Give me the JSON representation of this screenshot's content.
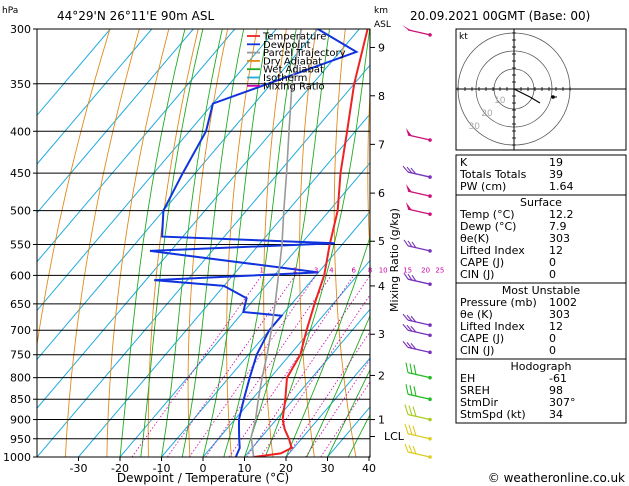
{
  "header": {
    "location": "44°29'N 26°11'E 90m ASL",
    "datetime": "20.09.2021 00GMT (Base: 00)"
  },
  "axes": {
    "left_unit": "hPa",
    "km_unit": "km",
    "asl_label": "ASL",
    "xlabel": "Dewpoint / Temperature (°C)",
    "mixing_label": "Mixing Ratio (g/kg)",
    "lcl_label": "LCL"
  },
  "legend": [
    {
      "name": "Temperature",
      "color": "#ee2222"
    },
    {
      "name": "Dewpoint",
      "color": "#1133dd"
    },
    {
      "name": "Parcel Trajectory",
      "color": "#999999"
    },
    {
      "name": "Dry Adiabat",
      "color": "#e08a1c"
    },
    {
      "name": "Wet Adiabat",
      "color": "#22aa22"
    },
    {
      "name": "Isotherm",
      "color": "#22aadd"
    },
    {
      "name": "Mixing Ratio",
      "color": "#cc00aa"
    }
  ],
  "chart_data": {
    "type": "line",
    "title": "",
    "pressure_levels": [
      300,
      350,
      400,
      450,
      500,
      550,
      600,
      650,
      700,
      750,
      800,
      850,
      900,
      950,
      1000
    ],
    "temperature_ticks": [
      -30,
      -20,
      -10,
      0,
      10,
      20,
      30,
      40
    ],
    "xlim": [
      -40,
      40
    ],
    "ylim_hpa": [
      1000,
      300
    ],
    "km_ticks": [
      {
        "km": 1,
        "p": 900
      },
      {
        "km": 2,
        "p": 795
      },
      {
        "km": 3,
        "p": 708
      },
      {
        "km": 4,
        "p": 618
      },
      {
        "km": 5,
        "p": 545
      },
      {
        "km": 6,
        "p": 476
      },
      {
        "km": 7,
        "p": 415
      },
      {
        "km": 8,
        "p": 362
      },
      {
        "km": 9,
        "p": 316
      }
    ],
    "mixing_ratio_labels": [
      "1",
      "2",
      "3",
      "4",
      "6",
      "8",
      "10",
      "15",
      "20",
      "25"
    ],
    "mixing_ratio_values": [
      1,
      2,
      3,
      4,
      6,
      8,
      10,
      15,
      20,
      25
    ],
    "series": [
      {
        "name": "Temperature",
        "color": "#ee2222",
        "points": [
          [
            1000,
            12.2
          ],
          [
            990,
            18
          ],
          [
            975,
            19.5
          ],
          [
            950,
            17
          ],
          [
            925,
            14
          ],
          [
            900,
            11.5
          ],
          [
            850,
            8
          ],
          [
            800,
            4
          ],
          [
            750,
            2.5
          ],
          [
            700,
            -1
          ],
          [
            650,
            -4.5
          ],
          [
            600,
            -8
          ],
          [
            550,
            -13
          ],
          [
            500,
            -18
          ],
          [
            450,
            -25
          ],
          [
            400,
            -32
          ],
          [
            350,
            -40
          ],
          [
            300,
            -48
          ]
        ]
      },
      {
        "name": "Dewpoint",
        "color": "#1133dd",
        "points": [
          [
            1000,
            7.9
          ],
          [
            975,
            7
          ],
          [
            950,
            5
          ],
          [
            925,
            3
          ],
          [
            900,
            1
          ],
          [
            850,
            -2
          ],
          [
            800,
            -5
          ],
          [
            750,
            -8
          ],
          [
            700,
            -10
          ],
          [
            672,
            -10
          ],
          [
            665,
            -20
          ],
          [
            640,
            -22
          ],
          [
            618,
            -30
          ],
          [
            608,
            -48
          ],
          [
            595,
            -10
          ],
          [
            560,
            -55
          ],
          [
            548,
            -12
          ],
          [
            538,
            -55
          ],
          [
            500,
            -60
          ],
          [
            450,
            -63
          ],
          [
            400,
            -66
          ],
          [
            370,
            -70
          ],
          [
            320,
            -46
          ],
          [
            300,
            -60
          ]
        ]
      },
      {
        "name": "Parcel Trajectory",
        "color": "#999999",
        "points": [
          [
            1000,
            12.2
          ],
          [
            945,
            7.5
          ],
          [
            900,
            5
          ],
          [
            850,
            1.5
          ],
          [
            800,
            -2
          ],
          [
            750,
            -5.5
          ],
          [
            700,
            -9.5
          ],
          [
            650,
            -14
          ],
          [
            600,
            -19
          ],
          [
            550,
            -24.5
          ],
          [
            500,
            -31
          ],
          [
            450,
            -38
          ],
          [
            400,
            -46
          ],
          [
            350,
            -55
          ],
          [
            300,
            -64
          ]
        ]
      }
    ]
  },
  "indices": [
    {
      "label": "K",
      "value": "19"
    },
    {
      "label": "Totals Totals",
      "value": "39"
    },
    {
      "label": "PW (cm)",
      "value": "1.64"
    }
  ],
  "surface": {
    "title": "Surface",
    "rows": [
      {
        "label": "Temp (°C)",
        "value": "12.2"
      },
      {
        "label": "Dewp (°C)",
        "value": "7.9"
      },
      {
        "label": "θe(K)",
        "value": "303"
      },
      {
        "label": "Lifted Index",
        "value": "12"
      },
      {
        "label": "CAPE (J)",
        "value": "0"
      },
      {
        "label": "CIN (J)",
        "value": "0"
      }
    ]
  },
  "most_unstable": {
    "title": "Most Unstable",
    "rows": [
      {
        "label": "Pressure (mb)",
        "value": "1002"
      },
      {
        "label": "θe (K)",
        "value": "303"
      },
      {
        "label": "Lifted Index",
        "value": "12"
      },
      {
        "label": "CAPE (J)",
        "value": "0"
      },
      {
        "label": "CIN (J)",
        "value": "0"
      }
    ]
  },
  "hodograph_table": {
    "title": "Hodograph",
    "rows": [
      {
        "label": "EH",
        "value": "-61"
      },
      {
        "label": "SREH",
        "value": "98"
      },
      {
        "label": "StmDir",
        "value": "307°"
      },
      {
        "label": "StmSpd (kt)",
        "value": "34"
      }
    ]
  },
  "hodograph": {
    "unit_label": "kt",
    "ring_labels": [
      "10",
      "20",
      "30"
    ],
    "trace": [
      [
        0,
        0
      ],
      [
        8,
        -4
      ],
      [
        16,
        -8
      ],
      [
        26,
        -14
      ]
    ]
  },
  "copyright": "© weatheronline.co.uk"
}
